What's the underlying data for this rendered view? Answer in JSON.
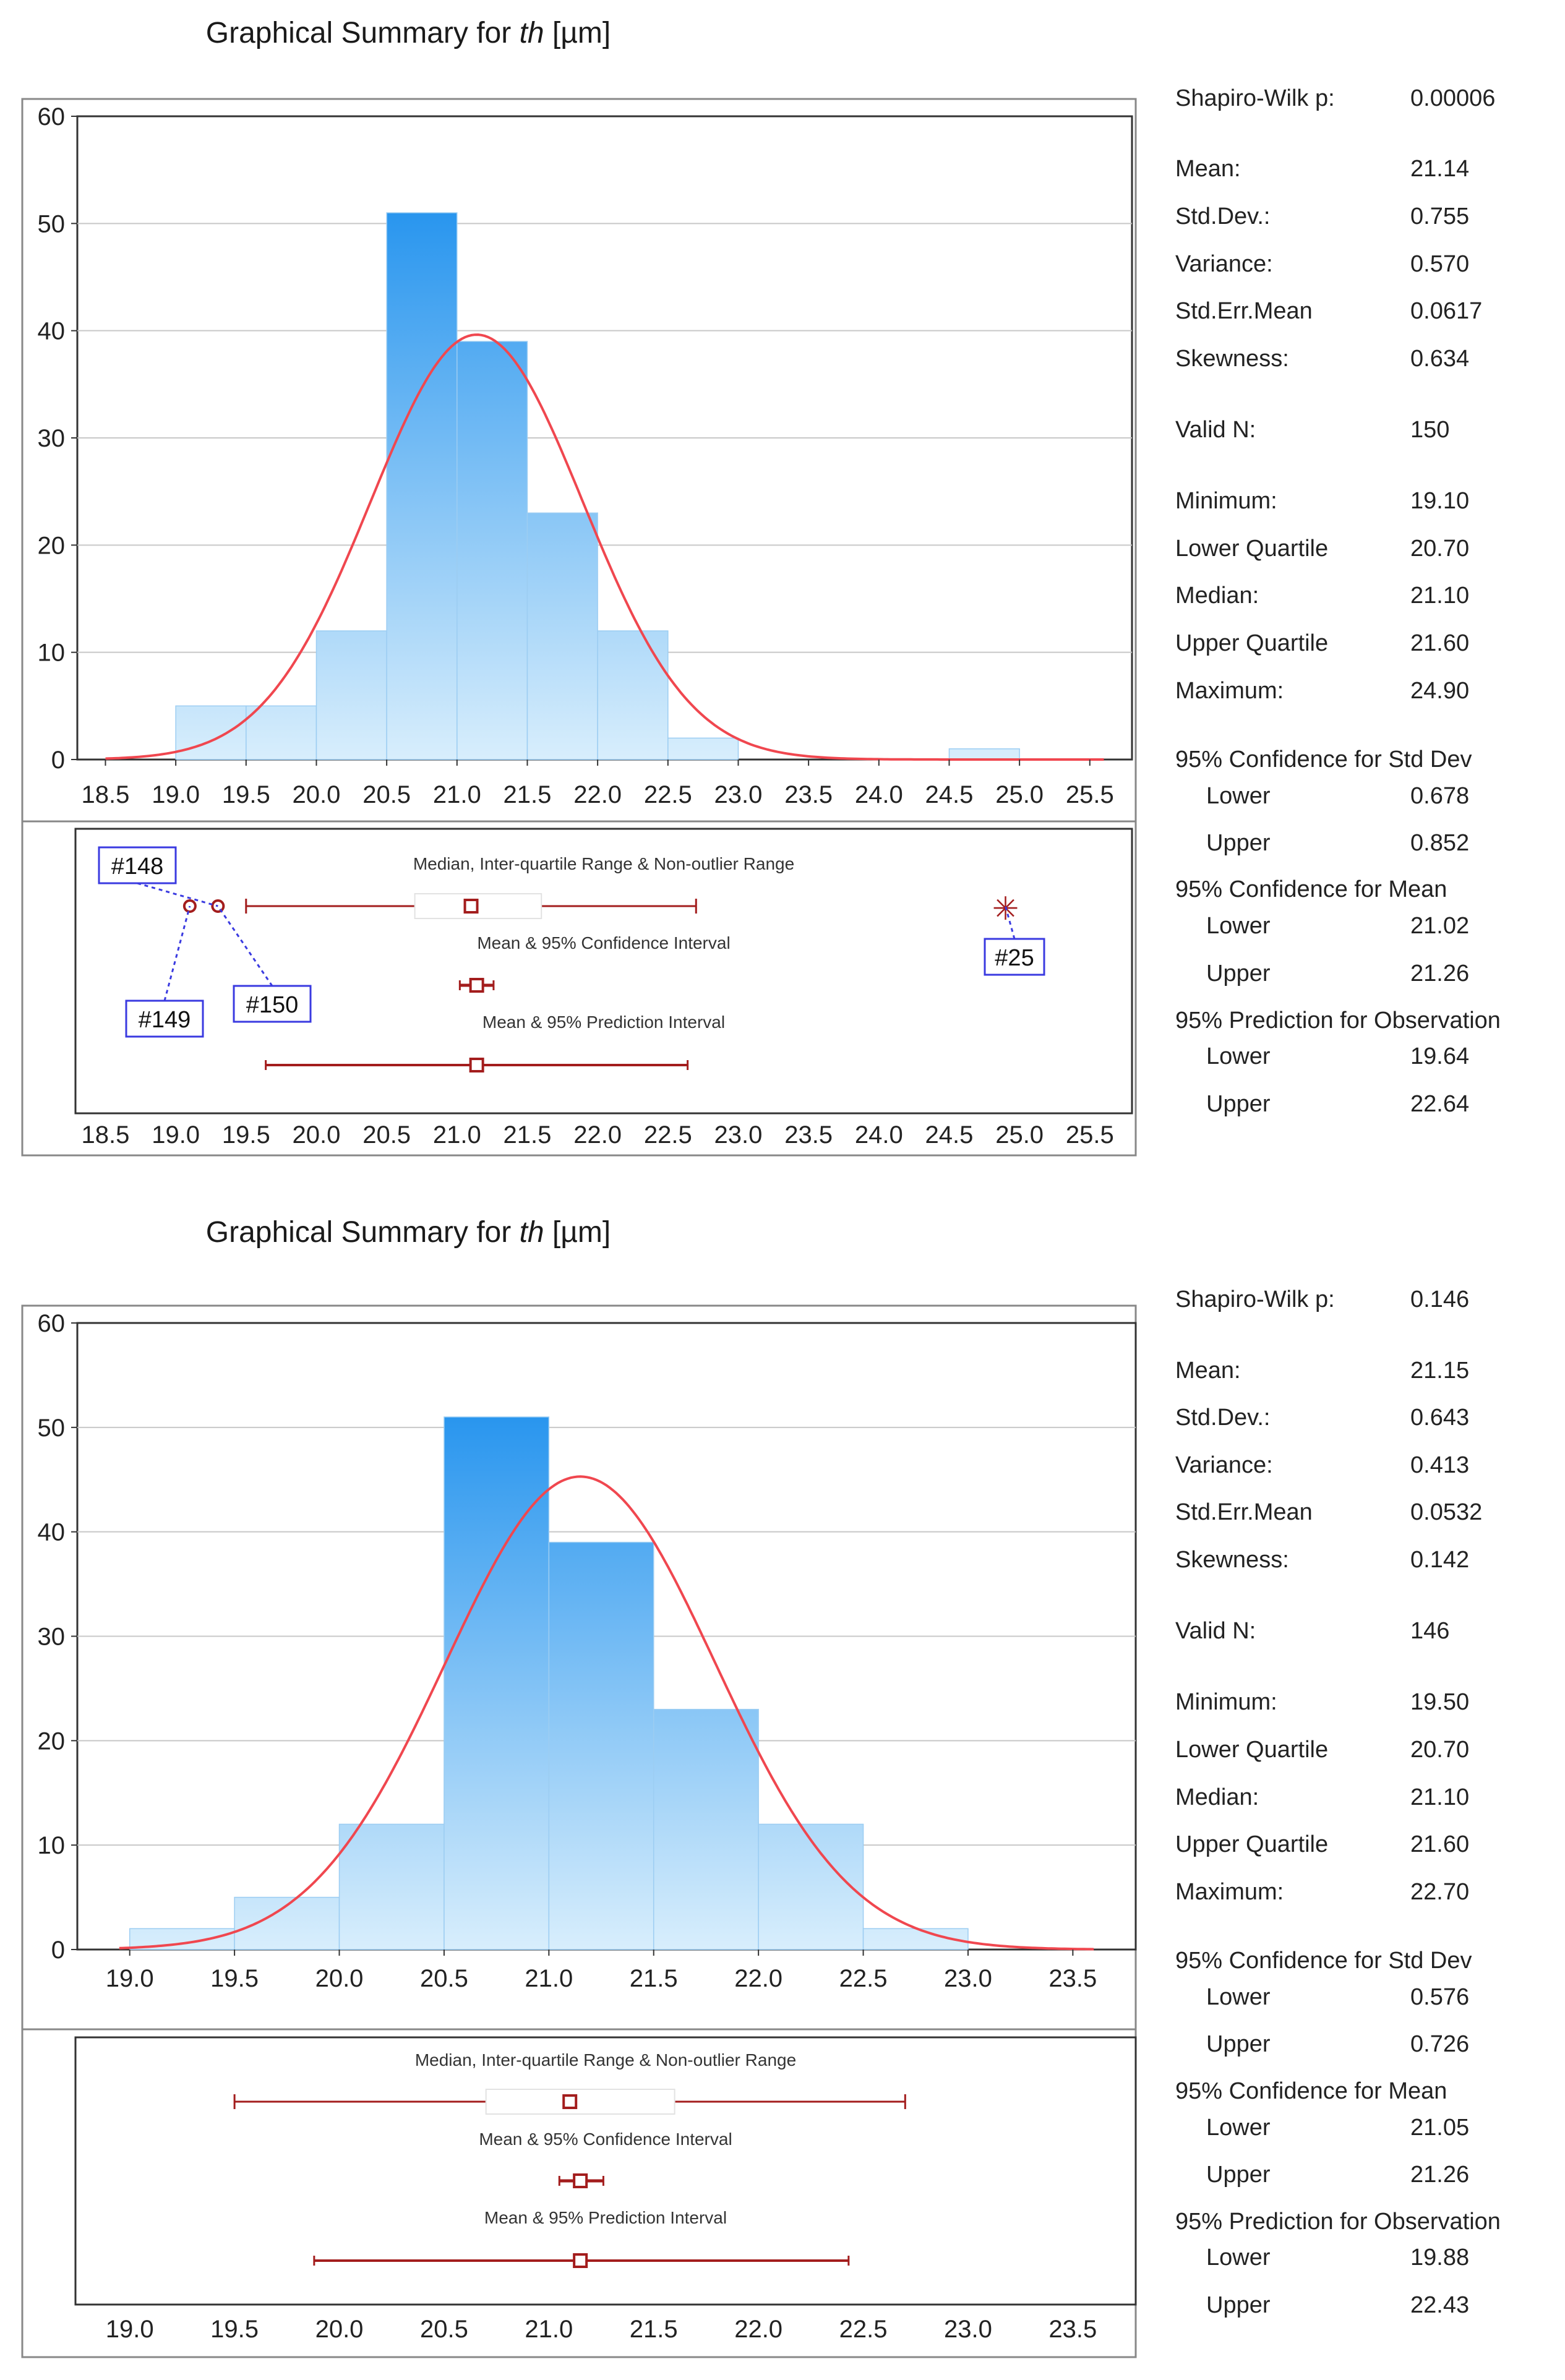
{
  "colors": {
    "bar_top": "#0a86ec",
    "bar_bottom": "#d8eefc",
    "curve": "#f0474f",
    "box": "#a31d1d",
    "label_box": "#3a3ae0"
  },
  "panels": [
    {
      "title_prefix": "Graphical Summary for ",
      "title_var": "th",
      "title_unit": " [µm]",
      "chart_data": {
        "type": "bar",
        "subtype": "histogram_with_normal_curve",
        "bin_edges": [
          19.0,
          19.5,
          20.0,
          20.5,
          21.0,
          21.5,
          22.0,
          22.5,
          23.0,
          23.5,
          24.0,
          24.5,
          25.0
        ],
        "counts": [
          5,
          5,
          12,
          51,
          39,
          23,
          12,
          2,
          0,
          0,
          0,
          1
        ],
        "xlim": [
          18.3,
          25.8
        ],
        "ylim": [
          0,
          60
        ],
        "yticks": [
          0,
          10,
          20,
          30,
          40,
          50,
          60
        ],
        "xticks": [
          "18.5",
          "19.0",
          "19.5",
          "20.0",
          "20.5",
          "21.0",
          "21.5",
          "22.0",
          "22.5",
          "23.0",
          "23.5",
          "24.0",
          "24.5",
          "25.0",
          "25.5"
        ],
        "normal": {
          "mean": 21.14,
          "sd": 0.755,
          "n": 150,
          "bin_width": 0.5
        },
        "boxplot": {
          "caption_box": "Median, Inter-quartile Range & Non-outlier Range",
          "caption_ci": "Mean & 95% Confidence Interval",
          "caption_pi": "Mean & 95% Prediction Interval",
          "whisker_low": 19.5,
          "q1": 20.7,
          "median": 21.1,
          "q3": 21.6,
          "whisker_high": 22.7,
          "mean": 21.14,
          "ci_low": 21.02,
          "ci_high": 21.26,
          "pi_low": 19.64,
          "pi_high": 22.64,
          "outliers": [
            19.1,
            19.3
          ],
          "extremes": [
            24.9
          ],
          "labels": [
            {
              "text": "#148",
              "point": 19.3
            },
            {
              "text": "#149",
              "point": 19.1
            },
            {
              "text": "#150",
              "point": 19.3
            },
            {
              "text": "#25",
              "point": 24.9
            }
          ]
        }
      },
      "stats": [
        {
          "label": "Shapiro-Wilk p:",
          "value": "0.00006"
        },
        {
          "label": "Mean:",
          "value": "21.14"
        },
        {
          "label": "Std.Dev.:",
          "value": "0.755"
        },
        {
          "label": "Variance:",
          "value": "0.570"
        },
        {
          "label": "Std.Err.Mean",
          "value": "0.0617"
        },
        {
          "label": "Skewness:",
          "value": "0.634"
        },
        {
          "label": "Valid N:",
          "value": "150"
        },
        {
          "label": "Minimum:",
          "value": "19.10"
        },
        {
          "label": "Lower Quartile",
          "value": "20.70"
        },
        {
          "label": "Median:",
          "value": "21.10"
        },
        {
          "label": "Upper Quartile",
          "value": "21.60"
        },
        {
          "label": "Maximum:",
          "value": "24.90"
        },
        {
          "label": "95% Confidence for Std Dev",
          "value": ""
        },
        {
          "label": "Lower",
          "value": "0.678"
        },
        {
          "label": "Upper",
          "value": "0.852"
        },
        {
          "label": "95% Confidence for Mean",
          "value": ""
        },
        {
          "label": "Lower",
          "value": "21.02"
        },
        {
          "label": "Upper",
          "value": "21.26"
        },
        {
          "label": "95% Prediction for Observation",
          "value": ""
        },
        {
          "label": "Lower",
          "value": "19.64"
        },
        {
          "label": "Upper",
          "value": "22.64"
        }
      ]
    },
    {
      "title_prefix": "Graphical Summary for ",
      "title_var": "th",
      "title_unit": " [µm]",
      "chart_data": {
        "type": "bar",
        "subtype": "histogram_with_normal_curve",
        "bin_edges": [
          19.0,
          19.5,
          20.0,
          20.5,
          21.0,
          21.5,
          22.0,
          22.5,
          23.0
        ],
        "counts": [
          2,
          5,
          12,
          51,
          39,
          23,
          12,
          2
        ],
        "xlim": [
          18.75,
          23.8
        ],
        "ylim": [
          0,
          60
        ],
        "yticks": [
          0,
          10,
          20,
          30,
          40,
          50,
          60
        ],
        "xticks": [
          "19.0",
          "19.5",
          "20.0",
          "20.5",
          "21.0",
          "21.5",
          "22.0",
          "22.5",
          "23.0",
          "23.5"
        ],
        "normal": {
          "mean": 21.15,
          "sd": 0.643,
          "n": 146,
          "bin_width": 0.5
        },
        "boxplot": {
          "caption_box": "Median, Inter-quartile Range & Non-outlier Range",
          "caption_ci": "Mean & 95% Confidence Interval",
          "caption_pi": "Mean & 95% Prediction Interval",
          "whisker_low": 19.5,
          "q1": 20.7,
          "median": 21.1,
          "q3": 21.6,
          "whisker_high": 22.7,
          "mean": 21.15,
          "ci_low": 21.05,
          "ci_high": 21.26,
          "pi_low": 19.88,
          "pi_high": 22.43,
          "outliers": [],
          "extremes": [],
          "labels": []
        }
      },
      "stats": [
        {
          "label": "Shapiro-Wilk p:",
          "value": "0.146"
        },
        {
          "label": "Mean:",
          "value": "21.15"
        },
        {
          "label": "Std.Dev.:",
          "value": "0.643"
        },
        {
          "label": "Variance:",
          "value": "0.413"
        },
        {
          "label": "Std.Err.Mean",
          "value": "0.0532"
        },
        {
          "label": "Skewness:",
          "value": "0.142"
        },
        {
          "label": "Valid N:",
          "value": "146"
        },
        {
          "label": "Minimum:",
          "value": "19.50"
        },
        {
          "label": "Lower Quartile",
          "value": "20.70"
        },
        {
          "label": "Median:",
          "value": "21.10"
        },
        {
          "label": "Upper Quartile",
          "value": "21.60"
        },
        {
          "label": "Maximum:",
          "value": "22.70"
        },
        {
          "label": "95% Confidence for Std Dev",
          "value": ""
        },
        {
          "label": "Lower",
          "value": "0.576"
        },
        {
          "label": "Upper",
          "value": "0.726"
        },
        {
          "label": "95% Confidence for Mean",
          "value": ""
        },
        {
          "label": "Lower",
          "value": "21.05"
        },
        {
          "label": "Upper",
          "value": "21.26"
        },
        {
          "label": "95% Prediction for Observation",
          "value": ""
        },
        {
          "label": "Lower",
          "value": "19.88"
        },
        {
          "label": "Upper",
          "value": "22.43"
        }
      ]
    }
  ]
}
